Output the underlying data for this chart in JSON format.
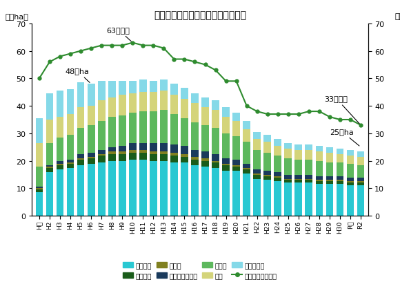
{
  "title": "＜花きの産出額・作付面積の推移＞",
  "ylabel_left": "（千ha）",
  "ylabel_right": "（百億円）",
  "ylim": [
    0,
    70
  ],
  "categories": [
    "H元",
    "H2",
    "H3",
    "H4",
    "H5",
    "H6",
    "H7",
    "H8",
    "H9",
    "H10",
    "H11",
    "H12",
    "H13",
    "H14",
    "H15",
    "H16",
    "H17",
    "H18",
    "H19",
    "H20",
    "H21",
    "H22",
    "H23",
    "H24",
    "H25",
    "H26",
    "H27",
    "H28",
    "H29",
    "H30",
    "R元",
    "R2"
  ],
  "kiri_hanagui": [
    8.5,
    16.0,
    17.0,
    17.5,
    18.5,
    19.0,
    19.5,
    20.0,
    20.0,
    20.5,
    20.5,
    20.0,
    20.0,
    19.5,
    19.5,
    18.5,
    18.0,
    17.5,
    16.5,
    16.5,
    15.5,
    13.5,
    13.0,
    12.5,
    12.0,
    12.0,
    12.0,
    11.5,
    11.5,
    11.5,
    11.0,
    11.0
  ],
  "hachi_mono": [
    1.0,
    1.5,
    1.5,
    1.5,
    2.0,
    2.0,
    2.5,
    2.5,
    2.5,
    2.5,
    2.5,
    2.5,
    2.5,
    2.5,
    2.0,
    2.0,
    2.0,
    2.0,
    2.0,
    1.5,
    1.5,
    1.5,
    1.5,
    1.5,
    1.0,
    1.0,
    1.0,
    1.0,
    1.0,
    1.0,
    1.0,
    1.0
  ],
  "kyuukon": [
    0.5,
    0.5,
    0.5,
    0.5,
    0.5,
    0.5,
    0.5,
    1.0,
    1.0,
    1.0,
    1.0,
    1.0,
    1.0,
    1.0,
    1.0,
    1.0,
    1.0,
    0.5,
    0.5,
    0.5,
    0.5,
    0.5,
    0.5,
    0.5,
    0.5,
    0.5,
    0.5,
    0.5,
    0.5,
    0.5,
    0.5,
    0.5
  ],
  "hanadan_nae": [
    0.5,
    0.5,
    1.0,
    1.0,
    1.5,
    1.5,
    1.5,
    1.5,
    2.0,
    2.5,
    2.5,
    3.0,
    3.0,
    3.0,
    3.0,
    2.5,
    2.5,
    2.5,
    2.0,
    2.0,
    1.5,
    1.5,
    1.5,
    1.5,
    1.5,
    1.5,
    1.5,
    1.5,
    1.5,
    1.5,
    1.5,
    1.5
  ],
  "kaki_mono": [
    7.5,
    8.0,
    8.5,
    9.0,
    9.5,
    10.0,
    10.5,
    11.0,
    11.0,
    11.0,
    11.5,
    11.5,
    12.0,
    11.0,
    10.0,
    10.0,
    9.5,
    9.5,
    9.0,
    8.5,
    8.0,
    7.0,
    6.5,
    6.0,
    6.0,
    5.5,
    5.5,
    5.5,
    5.0,
    5.0,
    5.0,
    4.5
  ],
  "shiba": [
    8.5,
    8.5,
    7.5,
    7.5,
    7.5,
    7.0,
    7.5,
    7.0,
    7.5,
    7.0,
    7.0,
    7.0,
    7.0,
    7.0,
    7.0,
    7.0,
    6.5,
    6.5,
    6.0,
    5.5,
    4.5,
    4.0,
    4.0,
    3.5,
    3.5,
    3.5,
    3.5,
    3.5,
    3.5,
    3.0,
    3.0,
    3.0
  ],
  "jimen_shokubutsu": [
    9.0,
    9.5,
    9.5,
    9.0,
    9.0,
    8.0,
    7.0,
    6.0,
    5.0,
    4.5,
    4.5,
    4.0,
    4.0,
    4.0,
    4.0,
    3.5,
    3.5,
    3.5,
    3.5,
    3.0,
    3.0,
    2.5,
    2.5,
    2.5,
    2.0,
    2.0,
    2.0,
    2.0,
    2.0,
    2.0,
    2.0,
    2.0
  ],
  "sanshutsugaku": [
    50,
    56,
    58,
    59,
    60,
    61,
    62,
    62,
    62,
    63,
    62,
    62,
    61,
    57,
    57,
    56,
    55,
    53,
    49,
    49,
    40,
    38,
    37,
    37,
    37,
    37,
    38,
    38,
    36,
    35,
    35,
    33
  ],
  "label_kiri": "切り花類",
  "label_hachi": "鉢もの類",
  "label_kyuu": "球根類",
  "label_hana": "花壇用苗もの類",
  "label_kaki": "花木類",
  "label_shiba": "芝類",
  "label_jimen": "地被植物類",
  "label_line": "産出額（百億円）",
  "ann_63": "63百億円",
  "ann_48": "48千ha",
  "ann_33": "33百億円",
  "ann_25": "25千ha",
  "color_kiri": "#29C8D2",
  "color_hachi": "#1A5C1A",
  "color_kyuukon": "#808020",
  "color_hanadan": "#1A3A5C",
  "color_kaki": "#5DB85D",
  "color_shiba": "#D4D47A",
  "color_jimen": "#85D9E8",
  "color_line": "#2E8B2E",
  "background_color": "#ffffff"
}
